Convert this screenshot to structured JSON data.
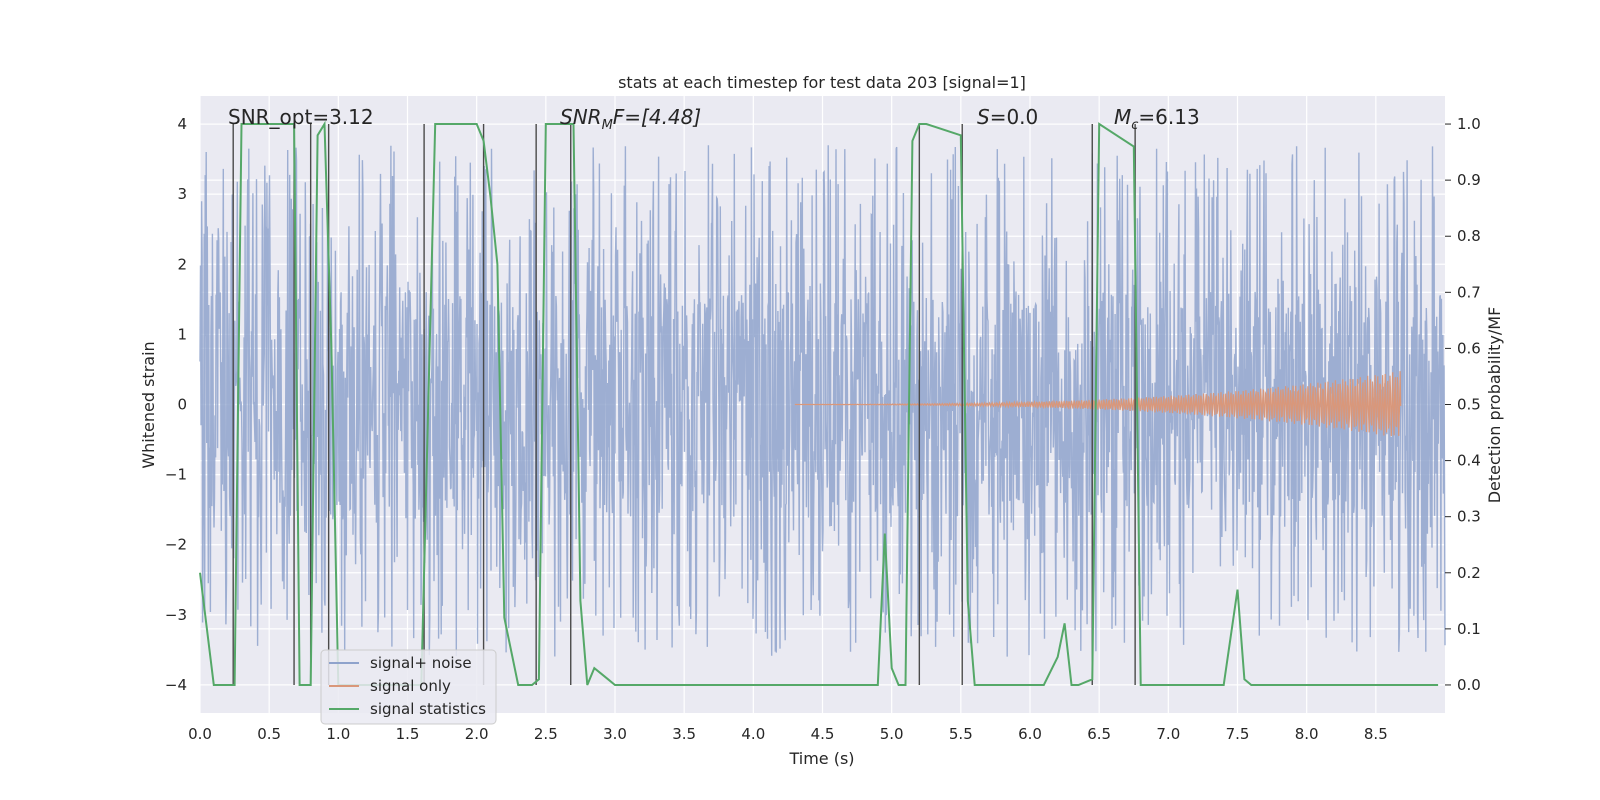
{
  "chart_data": {
    "type": "line",
    "title": "stats at each timestep for test data 203 [signal=1]",
    "xlabel": "Time (s)",
    "ylabel_left": "Whitened strain",
    "ylabel_right": "Detection probability/MF",
    "xlim": [
      0.0,
      9.0
    ],
    "ylim_left": [
      -4.4,
      4.4
    ],
    "ylim_right": [
      -0.05,
      1.05
    ],
    "xticks": [
      0.0,
      0.5,
      1.0,
      1.5,
      2.0,
      2.5,
      3.0,
      3.5,
      4.0,
      4.5,
      5.0,
      5.5,
      6.0,
      6.5,
      7.0,
      7.5,
      8.0,
      8.5
    ],
    "xtick_labels": [
      "0.0",
      "0.5",
      "1.0",
      "1.5",
      "2.0",
      "2.5",
      "3.0",
      "3.5",
      "4.0",
      "4.5",
      "5.0",
      "5.5",
      "6.0",
      "6.5",
      "7.0",
      "7.5",
      "8.0",
      "8.5"
    ],
    "yticks_left": [
      -4,
      -3,
      -2,
      -1,
      0,
      1,
      2,
      3,
      4
    ],
    "ytick_labels_left": [
      "−4",
      "−3",
      "−2",
      "−1",
      "0",
      "1",
      "2",
      "3",
      "4"
    ],
    "yticks_right": [
      0.0,
      0.1,
      0.2,
      0.3,
      0.4,
      0.5,
      0.6,
      0.7,
      0.8,
      0.9,
      1.0
    ],
    "ytick_labels_right": [
      "0.0",
      "0.1",
      "0.2",
      "0.3",
      "0.4",
      "0.5",
      "0.6",
      "0.7",
      "0.8",
      "0.9",
      "1.0"
    ],
    "annotations": {
      "snr_opt": "SNR_opt=3.12",
      "snr_mf_main": "SNR",
      "snr_mf_sub": "M",
      "snr_mf_rest": "F=[4.48]",
      "s_main": "S",
      "s_rest": "=0.0",
      "mc_main": "M",
      "mc_sub": "c",
      "mc_rest": "=6.13"
    },
    "legend": {
      "position": "lower-left",
      "entries": [
        "signal+ noise",
        "signal only",
        "signal statistics"
      ]
    },
    "series": [
      {
        "name": "signal+ noise",
        "color": "#8fa3cc",
        "kind": "noise",
        "x_range": [
          0.0,
          9.0
        ],
        "core_sigma": 1.6,
        "peak_range": [
          -3.6,
          3.7
        ]
      },
      {
        "name": "signal only",
        "color": "#d9977a",
        "kind": "chirp",
        "x_range": [
          4.3,
          8.68
        ],
        "max_amplitude": 0.45
      },
      {
        "name": "signal statistics",
        "color": "#55a868",
        "x": [
          0.0,
          0.05,
          0.1,
          0.25,
          0.3,
          0.68,
          0.72,
          0.8,
          0.85,
          0.9,
          0.95,
          1.0,
          1.6,
          1.7,
          2.0,
          2.05,
          2.1,
          2.15,
          2.2,
          2.3,
          2.4,
          2.45,
          2.5,
          2.7,
          2.75,
          2.8,
          2.85,
          2.9,
          2.95,
          3.0,
          4.9,
          4.95,
          5.0,
          5.05,
          5.1,
          5.15,
          5.2,
          5.25,
          5.5,
          5.55,
          5.6,
          6.1,
          6.2,
          6.25,
          6.3,
          6.35,
          6.45,
          6.5,
          6.75,
          6.8,
          6.85,
          7.4,
          7.5,
          7.55,
          7.6,
          7.65,
          8.95
        ],
        "y": [
          0.2,
          0.1,
          0.0,
          0.0,
          1.0,
          1.0,
          0.0,
          0.0,
          0.98,
          1.0,
          0.6,
          0.0,
          0.0,
          1.0,
          1.0,
          0.97,
          0.87,
          0.75,
          0.12,
          0.0,
          0.0,
          0.01,
          1.0,
          1.0,
          0.15,
          0.0,
          0.03,
          0.02,
          0.01,
          0.0,
          0.0,
          0.27,
          0.03,
          0.0,
          0.0,
          0.97,
          1.0,
          1.0,
          0.98,
          0.15,
          0.0,
          0.0,
          0.05,
          0.11,
          0.0,
          0.0,
          0.01,
          1.0,
          0.96,
          0.0,
          0.0,
          0.0,
          0.17,
          0.01,
          0.0,
          0.0,
          0.0
        ]
      }
    ],
    "vertical_lines": [
      0.24,
      0.68,
      0.8,
      0.93,
      1.62,
      2.05,
      2.43,
      2.68,
      5.2,
      5.51,
      6.45,
      6.76
    ]
  }
}
